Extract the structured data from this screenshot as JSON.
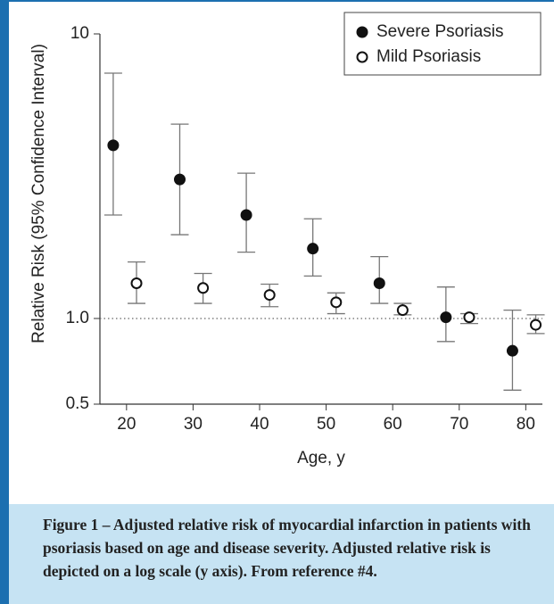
{
  "chart_data": {
    "type": "errorbar-scatter",
    "xlabel": "Age, y",
    "ylabel": "Relative Risk (95% Confidence Interval)",
    "xlim": [
      16,
      82.5
    ],
    "xticks": [
      20,
      30,
      40,
      50,
      60,
      70,
      80
    ],
    "ylim": [
      0.5,
      10
    ],
    "yticks": [
      10,
      {
        "value": 1,
        "label": "1.0"
      },
      0.5
    ],
    "log_y": true,
    "reference_line": 1,
    "legend": "upper right",
    "series": [
      {
        "name": "Severe Psoriasis",
        "color": "#111111",
        "filled": true,
        "x": [
          18,
          28,
          38,
          48,
          58,
          68,
          78
        ],
        "values": [
          4.06,
          3.08,
          2.31,
          1.76,
          1.33,
          1.01,
          0.77
        ],
        "ci_low": [
          2.31,
          1.97,
          1.71,
          1.41,
          1.13,
          0.83,
          0.56
        ],
        "ci_high": [
          7.28,
          4.82,
          3.24,
          2.24,
          1.65,
          1.29,
          1.07
        ]
      },
      {
        "name": "Mild Psoriasis",
        "color": "#111111",
        "filled": false,
        "x": [
          21.5,
          31.5,
          41.5,
          51.5,
          61.5,
          71.5,
          81.5
        ],
        "values": [
          1.33,
          1.28,
          1.21,
          1.14,
          1.07,
          1.01,
          0.95
        ],
        "ci_low": [
          1.13,
          1.13,
          1.1,
          1.04,
          1.03,
          0.96,
          0.885
        ],
        "ci_high": [
          1.58,
          1.44,
          1.32,
          1.23,
          1.13,
          1.04,
          1.03
        ]
      }
    ]
  },
  "caption": "Figure 1 – Adjusted relative risk of myocardial infarction in patients with psoriasis based on age and disease severity. Adjusted relative risk is depicted on a log scale (y axis). From reference #4."
}
